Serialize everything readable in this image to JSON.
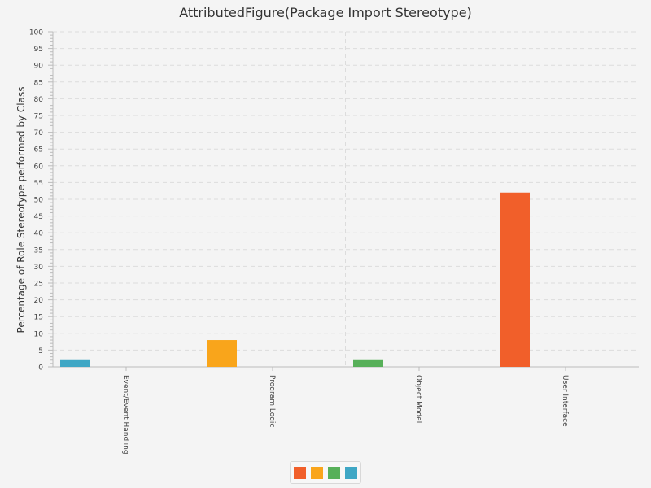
{
  "chart_data": {
    "type": "bar",
    "title": "AttributedFigure(Package Import Stereotype)",
    "ylabel": "Percentage of Role Stereotype performed by Class",
    "xlabel": "",
    "ylim": [
      0,
      100
    ],
    "ytick_step": 5,
    "grid": true,
    "legend_placement": "bottom",
    "categories": [
      "Event/Event Handling",
      "Program Logic",
      "Object Model",
      "User Interface"
    ],
    "series": [
      {
        "color": "#f15f2a",
        "values": [
          0,
          0,
          0,
          52
        ]
      },
      {
        "color": "#f9a51b",
        "values": [
          0,
          8,
          0,
          0
        ]
      },
      {
        "color": "#57b059",
        "values": [
          0,
          0,
          2,
          0
        ]
      },
      {
        "color": "#3fa7c5",
        "values": [
          2,
          0,
          0,
          0
        ]
      }
    ]
  }
}
